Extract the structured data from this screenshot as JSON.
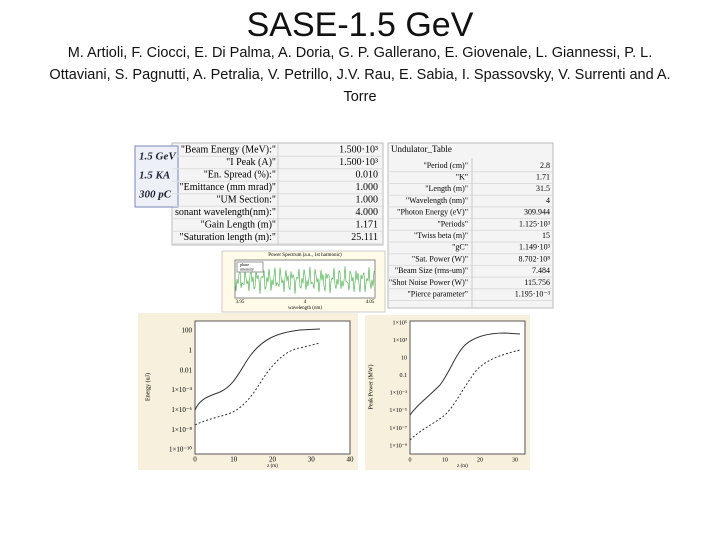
{
  "header": {
    "title": "SASE-1.5 GeV",
    "authors": "M. Artioli, F. Ciocci, E. Di Palma, A. Doria, G. P. Gallerano, E. Giovenale, L. Giannessi, P. L. Ottaviani, S. Pagnutti, A. Petralia, V. Petrillo, J.V. Rau, E. Sabia, I. Spassovsky, V. Surrenti and A. Torre"
  },
  "beam_box": [
    "1.5 GeV",
    "1.5 KA",
    "300 pC"
  ],
  "params_table": {
    "rows": [
      [
        "\"Beam Energy (MeV):\"",
        "1.500·10³"
      ],
      [
        "\"I Peak (A)\"",
        "1.500·10³"
      ],
      [
        "\"En. Spread (%):\"",
        "0.010"
      ],
      [
        "\"Emittance (mm mrad)\"",
        "1.000"
      ],
      [
        "\"UM Section:\"",
        "1.000"
      ],
      [
        "sonant wavelength(nm):\"",
        "4.000"
      ],
      [
        "\"Gain Length (m)\"",
        "1.171"
      ],
      [
        "\"Saturation length (m):\"",
        "25.111"
      ]
    ]
  },
  "undulator_table": {
    "title": "Undulator_Table",
    "rows": [
      [
        "\"Period (cm)\"",
        "2.8"
      ],
      [
        "\"K\"",
        "1.71"
      ],
      [
        "\"Length (m)\"",
        "31.5"
      ],
      [
        "\"Wavelength (nm)\"",
        "4"
      ],
      [
        "\"Photon Energy (eV)\"",
        "309.944"
      ],
      [
        "\"Periods\"",
        "1.125·10³"
      ],
      [
        "\"Twiss beta (m)\"",
        "15"
      ],
      [
        "\"gC\"",
        "1.149·10³"
      ],
      [
        "\"Sat. Power (W)\"",
        "8.702·10⁸"
      ],
      [
        "\"Beam Size (rms-um)\"",
        "7.484"
      ],
      [
        "\"Shot Noise Power (W)\"",
        "115.756"
      ],
      [
        "\"Pierce parameter\"",
        "1.195·10⁻³"
      ]
    ]
  },
  "spectrum": {
    "title": "Power Spectrum (a.u., 1st harmonic)",
    "x_label": "wavelength (nm)",
    "xticks": [
      "3.95",
      "4",
      "4.05"
    ],
    "legend": [
      "phase",
      "intensity"
    ]
  },
  "energy_plot": {
    "y_label": "Energy (uJ)",
    "x_label": "z (m)",
    "yticks": [
      "100",
      "1",
      "0.01",
      "1×10⁻⁴",
      "1×10⁻⁶",
      "1×10⁻⁸",
      "1×10⁻¹⁰"
    ],
    "xticks": [
      "0",
      "10",
      "20",
      "30",
      "40"
    ]
  },
  "power_plot": {
    "y_label": "Peak Power (MW)",
    "x_label": "z (m)",
    "yticks": [
      "1×10⁵",
      "1×10³",
      "10",
      "0.1",
      "1×10⁻³",
      "1×10⁻⁵",
      "1×10⁻⁷",
      "1×10⁻⁹"
    ],
    "xticks": [
      "0",
      "10",
      "20",
      "30"
    ]
  }
}
